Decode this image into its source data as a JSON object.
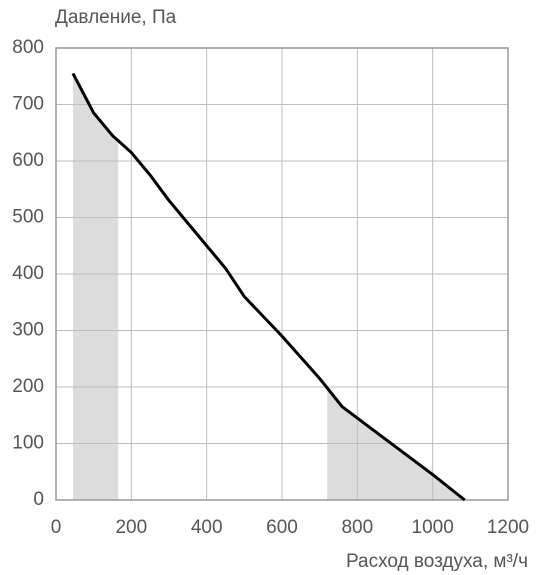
{
  "chart_data": {
    "type": "line",
    "ylabel": "Давление, Па",
    "xlabel": "Расход воздуха, м³/ч",
    "x": [
      45,
      100,
      150,
      200,
      250,
      300,
      400,
      450,
      500,
      600,
      700,
      760,
      800,
      900,
      1000,
      1085
    ],
    "series": [
      {
        "color": "#000000",
        "values": [
          755,
          685,
          645,
          615,
          575,
          530,
          450,
          410,
          360,
          290,
          215,
          165,
          145,
          95,
          45,
          0
        ]
      }
    ],
    "shaded_ranges": [
      [
        45,
        165
      ],
      [
        720,
        1085
      ]
    ],
    "shade_color": "#dcdcdc",
    "xlim": [
      0,
      1200
    ],
    "xticks": [
      0,
      200,
      400,
      600,
      800,
      1000,
      1200
    ],
    "ylim": [
      0,
      800
    ],
    "yticks": [
      0,
      100,
      200,
      300,
      400,
      500,
      600,
      700,
      800
    ],
    "grid": true
  }
}
